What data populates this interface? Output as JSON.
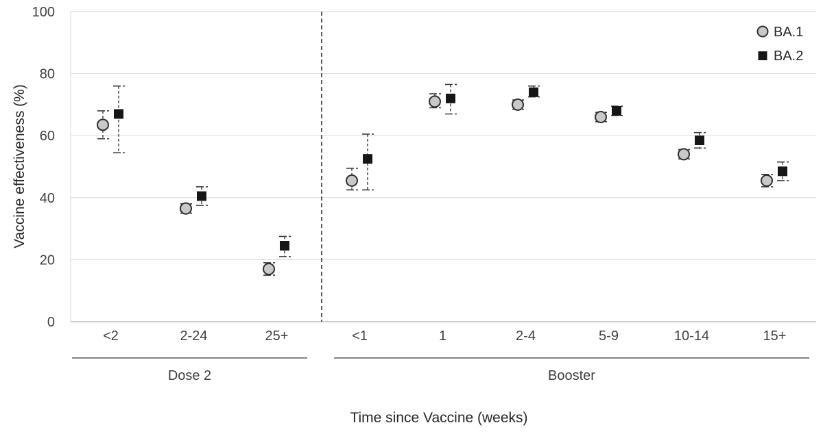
{
  "chart_data": {
    "type": "scatter",
    "title": "",
    "xlabel": "Time since Vaccine (weeks)",
    "ylabel": "Vaccine effectiveness (%)",
    "ylim": [
      0,
      100
    ],
    "yticks": [
      0,
      20,
      40,
      60,
      80,
      100
    ],
    "grid": "horizontal",
    "categories": [
      "<2",
      "2-24",
      "25+",
      "<1",
      "1",
      "2-4",
      "5-9",
      "10-14",
      "15+"
    ],
    "groups": [
      {
        "label": "Dose 2",
        "categories": [
          "<2",
          "2-24",
          "25+"
        ]
      },
      {
        "label": "Booster",
        "categories": [
          "<1",
          "1",
          "2-4",
          "5-9",
          "10-14",
          "15+"
        ]
      }
    ],
    "divider_after_category_index": 2,
    "legend": {
      "position": "top-right",
      "entries": [
        {
          "label": "BA.1",
          "marker": "circle",
          "fill": "#c9c9c9",
          "stroke": "#2e2e2e"
        },
        {
          "label": "BA.2",
          "marker": "square",
          "fill": "#161616",
          "stroke": "#161616"
        }
      ]
    },
    "series": [
      {
        "name": "BA.1",
        "marker": "circle",
        "fill": "#c9c9c9",
        "stroke": "#2e2e2e",
        "values": [
          63.5,
          36.5,
          17,
          45.5,
          71,
          70,
          66,
          54,
          45.5
        ],
        "ci_low": [
          59,
          35,
          15,
          42.5,
          69,
          68.5,
          64.5,
          52.5,
          43.5
        ],
        "ci_high": [
          68,
          38,
          19,
          49.5,
          73.5,
          71.5,
          67.5,
          55.5,
          47.5
        ]
      },
      {
        "name": "BA.2",
        "marker": "square",
        "fill": "#161616",
        "stroke": "#161616",
        "values": [
          67,
          40.5,
          24.5,
          52.5,
          72,
          74,
          68,
          58.5,
          48.5
        ],
        "ci_low": [
          54.5,
          37.5,
          21,
          42.5,
          67,
          72.5,
          66.5,
          56,
          45.5
        ],
        "ci_high": [
          76,
          43.5,
          27.5,
          60.5,
          76.5,
          76,
          69.5,
          61,
          51.5
        ]
      }
    ],
    "colors": {
      "gridline": "#d9d9d9",
      "axis_line": "#bfbfbf",
      "tick_label": "#404040",
      "error_bar": "#3a3a3a",
      "divider": "#333333",
      "group_underline": "#595959"
    }
  }
}
